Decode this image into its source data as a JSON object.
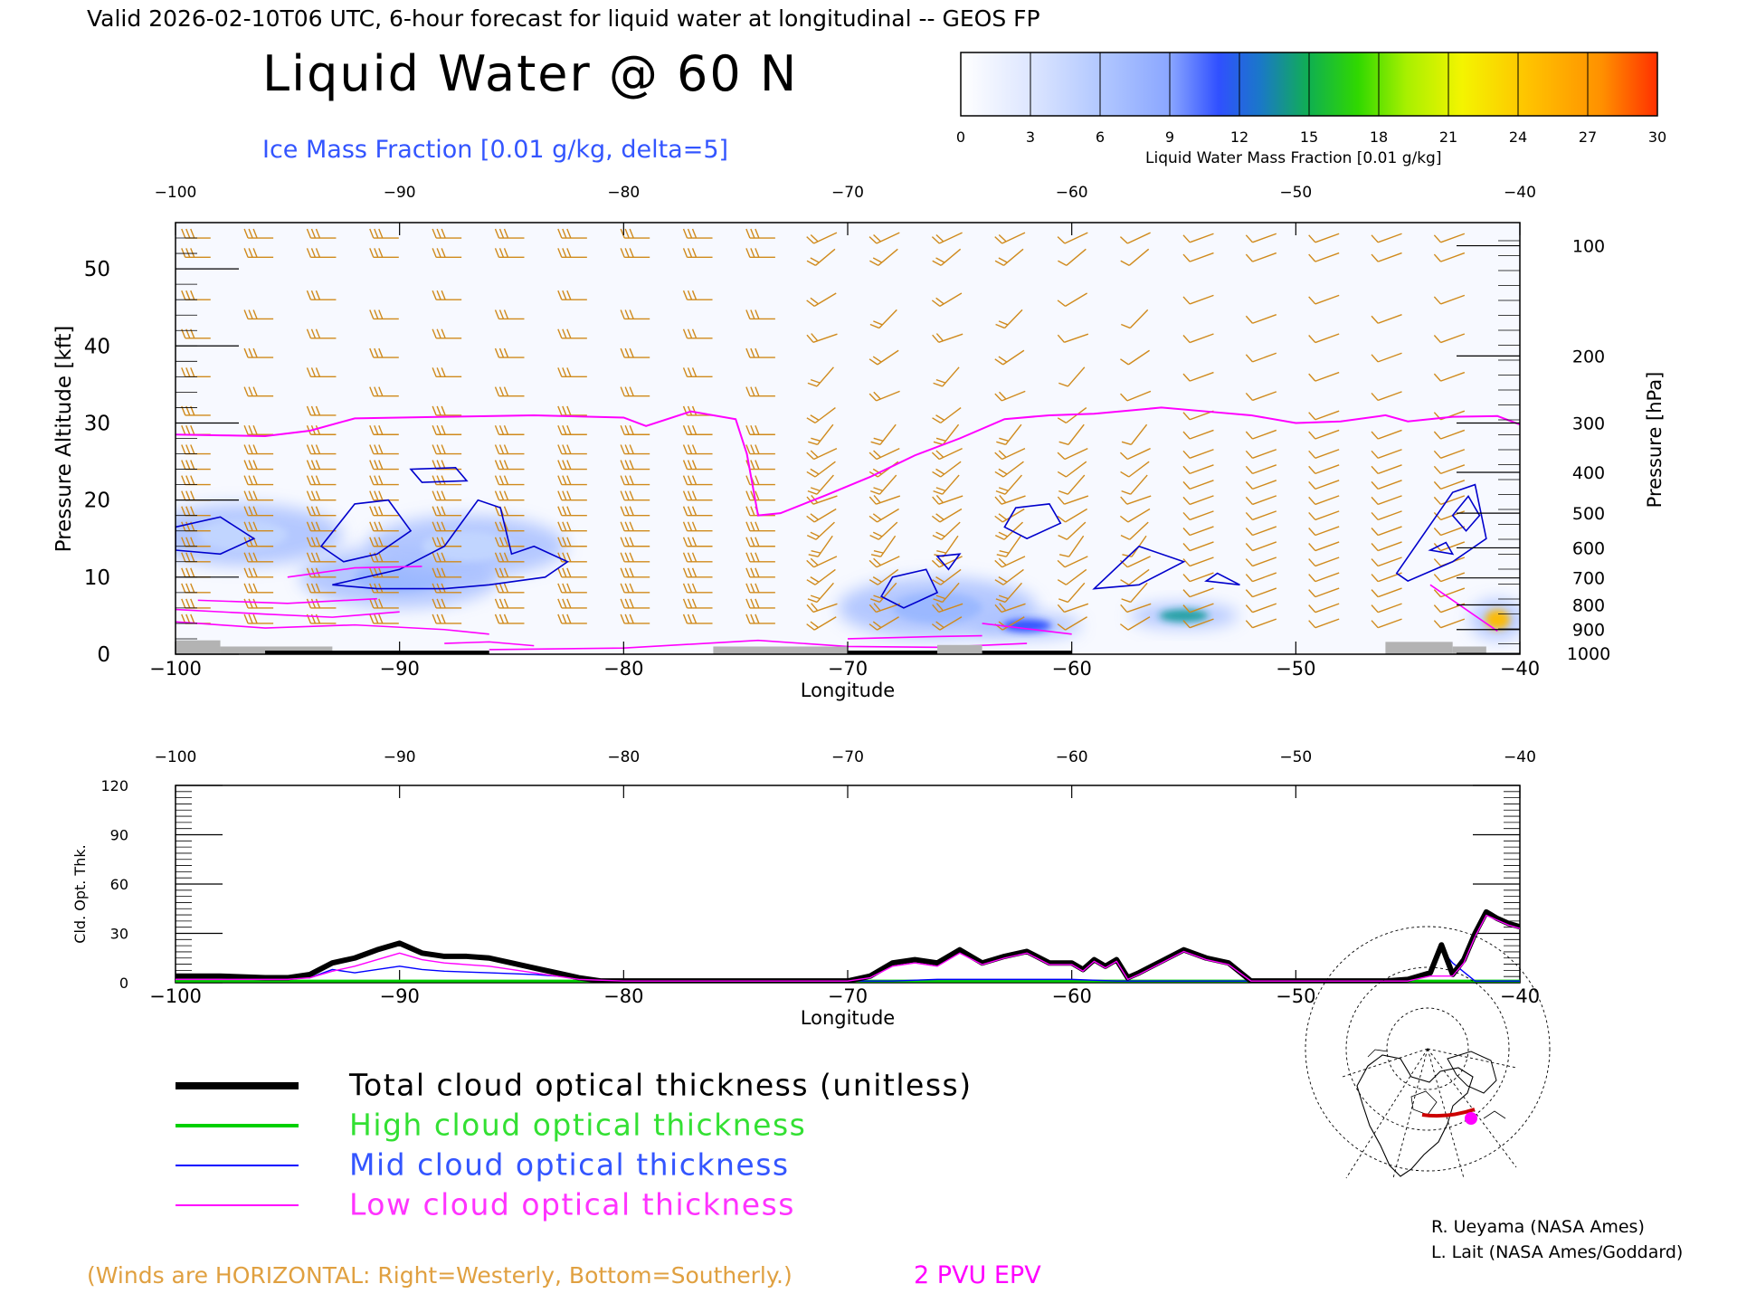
{
  "header": {
    "valid_line": "Valid 2026-02-10T06 UTC, 6-hour forecast for liquid water at longitudinal -- GEOS FP",
    "title": "Liquid Water @ 60 N",
    "subtitle": "Ice Mass Fraction [0.01 g/kg, delta=5]"
  },
  "colorbar": {
    "ticks": [
      "0",
      "3",
      "6",
      "9",
      "12",
      "15",
      "18",
      "21",
      "24",
      "27",
      "30"
    ],
    "label": "Liquid Water Mass Fraction [0.01 g/kg]",
    "colors": [
      "#f4f6ff",
      "#c2d6ff",
      "#9ab8ff",
      "#7090ff",
      "#2b4dff",
      "#1a9fa0",
      "#1ec000",
      "#7ee800",
      "#f4f400",
      "#ffbb00",
      "#ff5a00"
    ]
  },
  "chart_data": [
    {
      "type": "contour",
      "top_axis_ticks": [
        "-100",
        "-90",
        "-80",
        "-70",
        "-60",
        "-50",
        "-40"
      ],
      "bottom_axis_ticks": [
        "-100",
        "-90",
        "-80",
        "-70",
        "-60",
        "-50",
        "-40"
      ],
      "xlabel": "Longitude",
      "ylabel": "Pressure Altitude [kft]",
      "y_ticks": [
        "0",
        "10",
        "20",
        "30",
        "40",
        "50"
      ],
      "y2label": "Pressure [hPa]",
      "y2_ticks": [
        {
          "label": "100",
          "kft": 53
        },
        {
          "label": "200",
          "kft": 38.7
        },
        {
          "label": "300",
          "kft": 30
        },
        {
          "label": "400",
          "kft": 23.6
        },
        {
          "label": "500",
          "kft": 18.3
        },
        {
          "label": "600",
          "kft": 13.8
        },
        {
          "label": "700",
          "kft": 9.9
        },
        {
          "label": "800",
          "kft": 6.4
        },
        {
          "label": "900",
          "kft": 3.2
        },
        {
          "label": "1000",
          "kft": 0.1
        }
      ],
      "xlim": [
        -100,
        -40
      ],
      "ylim": [
        0,
        56
      ],
      "epv_2pvu_line": {
        "x": [
          -100,
          -98,
          -96,
          -94,
          -92,
          -88,
          -84,
          -80,
          -79,
          -77,
          -75,
          -74.5,
          -74,
          -73,
          -71,
          -69,
          -67,
          -65,
          -63,
          -61,
          -59,
          -56,
          -54,
          -52,
          -50,
          -48,
          -46,
          -45,
          -43,
          -41,
          -40
        ],
        "y": [
          28.5,
          28.4,
          28.3,
          29,
          30.6,
          30.8,
          31,
          30.7,
          29.6,
          31.5,
          30.5,
          26,
          18,
          18.3,
          20.6,
          23,
          25.8,
          28,
          30.5,
          31,
          31.2,
          32,
          31.5,
          31,
          30,
          30.2,
          31,
          30.2,
          30.8,
          30.9,
          29.8
        ]
      },
      "liquid_water_blobs": [
        {
          "x": -90,
          "y": 10,
          "value": 6
        },
        {
          "x": -87,
          "y": 14,
          "value": 4
        },
        {
          "x": -97,
          "y": 15.5,
          "value": 3
        },
        {
          "x": -66,
          "y": 6,
          "value": 8
        },
        {
          "x": -62,
          "y": 3.7,
          "value": 12
        },
        {
          "x": -55,
          "y": 5,
          "value": 15
        },
        {
          "x": -41,
          "y": 4.5,
          "value": 27
        }
      ]
    },
    {
      "type": "line",
      "top_axis_ticks": [
        "-100",
        "-90",
        "-80",
        "-70",
        "-60",
        "-50",
        "-40"
      ],
      "bottom_axis_ticks": [
        "-100",
        "-90",
        "-80",
        "-70",
        "-60",
        "-50",
        "-40"
      ],
      "xlabel": "Longitude",
      "ylabel": "Cld. Opt. Thk.",
      "y_ticks": [
        "0",
        "30",
        "60",
        "90",
        "120"
      ],
      "xlim": [
        -100,
        -40
      ],
      "ylim": [
        0,
        120
      ],
      "series": [
        {
          "name": "Total cloud optical thickness (unitless)",
          "color": "#000000",
          "x": [
            -100,
            -98,
            -96,
            -95,
            -94,
            -93,
            -92,
            -91,
            -90,
            -89,
            -88,
            -87,
            -86,
            -85,
            -84,
            -83,
            -82,
            -81,
            -80,
            -75,
            -70,
            -69,
            -68,
            -67,
            -66,
            -65,
            -64,
            -63,
            -62,
            -61,
            -60,
            -59.5,
            -59,
            -58.5,
            -58,
            -57.5,
            -57,
            -56,
            -55,
            -54,
            -53,
            -52,
            -50,
            -46,
            -45,
            -44,
            -43.5,
            -43,
            -42.5,
            -42,
            -41.5,
            -41,
            -40.5,
            -40
          ],
          "y": [
            4,
            4,
            3,
            3,
            5,
            12,
            15,
            20,
            24,
            18,
            16,
            16,
            15,
            12,
            9,
            6,
            3,
            1,
            1,
            1,
            1,
            4,
            12,
            14,
            12,
            20,
            12,
            16,
            19,
            12,
            12,
            8,
            14,
            10,
            14,
            3,
            6,
            13,
            20,
            15,
            12,
            1,
            1,
            1,
            2,
            6,
            23,
            5,
            14,
            30,
            43,
            39,
            36,
            34
          ]
        },
        {
          "name": "High cloud optical thickness",
          "color": "#00d000",
          "x": [
            -100,
            -40
          ],
          "y": [
            1,
            1
          ]
        },
        {
          "name": "Mid cloud optical thickness",
          "color": "#0000ff",
          "x": [
            -100,
            -98,
            -96,
            -94,
            -93,
            -92,
            -91,
            -90,
            -89,
            -88,
            -86,
            -84,
            -82,
            -80,
            -70,
            -68,
            -66,
            -62,
            -60,
            -58,
            -52,
            -50,
            -46,
            -44,
            -43.5,
            -43,
            -42,
            -40
          ],
          "y": [
            3,
            3,
            2,
            3,
            8,
            6,
            8,
            10,
            8,
            7,
            6,
            5,
            3,
            1,
            1,
            1,
            2,
            2,
            2,
            1,
            1,
            1,
            1,
            5,
            20,
            12,
            1,
            1
          ]
        },
        {
          "name": "Low cloud optical thickness",
          "color": "#ff00ff",
          "x": [
            -100,
            -98,
            -96,
            -95,
            -94,
            -93,
            -92,
            -91,
            -90,
            -89,
            -88,
            -87,
            -86,
            -85,
            -84,
            -83,
            -82,
            -80,
            -75,
            -70,
            -69,
            -68,
            -67,
            -66,
            -65,
            -64,
            -63,
            -62,
            -61,
            -60,
            -59.5,
            -59,
            -58.5,
            -58,
            -57.5,
            -57,
            -56,
            -55,
            -54,
            -53,
            -52,
            -50,
            -46,
            -45,
            -44,
            -43,
            -42.5,
            -42,
            -41.5,
            -41,
            -40.5,
            -40
          ],
          "y": [
            2,
            2,
            2,
            2,
            3,
            7,
            10,
            14,
            18,
            14,
            12,
            11,
            10,
            8,
            6,
            4,
            2,
            1,
            1,
            1,
            3,
            10,
            12,
            10,
            18,
            11,
            15,
            18,
            11,
            11,
            7,
            13,
            9,
            13,
            2,
            5,
            12,
            19,
            14,
            11,
            1,
            1,
            1,
            1,
            4,
            4,
            12,
            28,
            41,
            38,
            35,
            33
          ]
        }
      ]
    }
  ],
  "legend": [
    {
      "label": "Total cloud optical thickness (unitless)",
      "color": "#000000"
    },
    {
      "label": "High cloud optical thickness",
      "color": "#00d000"
    },
    {
      "label": "Mid cloud optical thickness",
      "color": "#0000ff"
    },
    {
      "label": "Low cloud optical thickness",
      "color": "#ff00ff"
    }
  ],
  "footer": {
    "winds_note": "(Winds are HORIZONTAL: Right=Westerly, Bottom=Southerly.)",
    "epv_label": "2 PVU EPV",
    "credit1": "R. Ueyama (NASA Ames)",
    "credit2": "L. Lait (NASA Ames/Goddard)"
  },
  "colors": {
    "wind": "#d08a1c",
    "epv": "#ff00ff",
    "ice": "#0000cc",
    "title_blue": "#3355ff",
    "terrain": "#b3b3b3"
  }
}
